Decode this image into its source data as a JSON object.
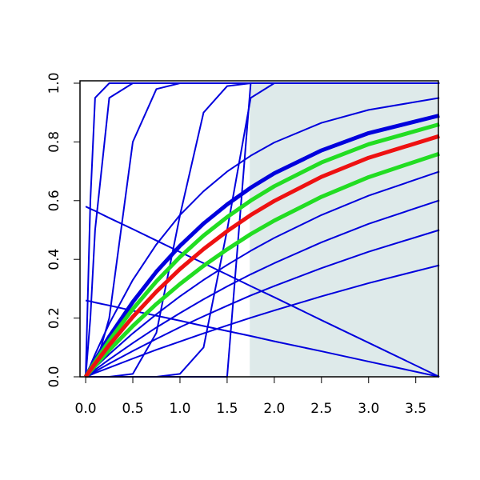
{
  "chart_data": {
    "type": "line",
    "x": [
      0,
      0.05,
      0.1,
      0.25,
      0.5,
      0.75,
      1,
      1.25,
      1.5,
      1.75,
      2,
      2.5,
      3,
      3.75
    ],
    "xlim": [
      -0.06,
      3.74
    ],
    "ylim": [
      0,
      1
    ],
    "xticks": [
      {
        "value": 0,
        "label": "0.0"
      },
      0.5,
      {
        "value": 1,
        "label": "1.0"
      },
      1.5,
      {
        "value": 2,
        "label": "2.0"
      },
      2.5,
      {
        "value": 3,
        "label": "3.0"
      },
      3.5
    ],
    "yticks": [
      {
        "value": 0,
        "label": "0.0"
      },
      0.2,
      0.4,
      0.6,
      0.8,
      {
        "value": 1,
        "label": "1.0"
      }
    ],
    "shaded_region": {
      "xlim": [
        1.74,
        3.74
      ],
      "color": "#deeaea"
    },
    "series": [
      {
        "color": "#0000dd",
        "width": 2,
        "values": [
          0,
          0.6,
          0.95,
          1,
          1,
          1,
          1,
          1,
          1,
          1,
          1,
          1,
          1,
          1
        ]
      },
      {
        "color": "#0000dd",
        "width": 2,
        "values": [
          0,
          0.2,
          0.5,
          0.95,
          1,
          1,
          1,
          1,
          1,
          1,
          1,
          1,
          1,
          1
        ]
      },
      {
        "color": "#0000dd",
        "width": 2,
        "values": [
          0,
          0.01,
          0.03,
          0.2,
          0.8,
          0.98,
          1,
          1,
          1,
          1,
          1,
          1,
          1,
          1
        ]
      },
      {
        "color": "#0000dd",
        "width": 2,
        "values": [
          0,
          0,
          0,
          0,
          0.01,
          0.15,
          0.55,
          0.9,
          0.99,
          1,
          1,
          1,
          1,
          1
        ]
      },
      {
        "color": "#0000dd",
        "width": 2,
        "values": [
          0,
          0,
          0,
          0,
          0,
          0,
          0.01,
          0.1,
          0.5,
          0.95,
          1,
          1,
          1,
          1
        ]
      },
      {
        "color": "#0000dd",
        "width": 2,
        "values": [
          0,
          0,
          0,
          0,
          0,
          0,
          0,
          0,
          0,
          1,
          1,
          1,
          1,
          1
        ]
      },
      {
        "color": "#0000dd",
        "width": 2,
        "values": [
          0.58,
          0.572,
          0.565,
          0.541,
          0.503,
          0.464,
          0.425,
          0.387,
          0.348,
          0.309,
          0.271,
          0.193,
          0.116,
          0
        ]
      },
      {
        "color": "#0000dd",
        "width": 2,
        "values": [
          0.26,
          0.257,
          0.253,
          0.243,
          0.225,
          0.208,
          0.191,
          0.173,
          0.156,
          0.139,
          0.121,
          0.087,
          0.052,
          0
        ]
      },
      {
        "color": "#0000dd",
        "width": 2,
        "values": [
          0,
          0.039,
          0.077,
          0.181,
          0.33,
          0.451,
          0.551,
          0.632,
          0.699,
          0.753,
          0.798,
          0.865,
          0.909,
          0.95
        ]
      },
      {
        "color": "#0000dd",
        "width": 5,
        "values": [
          0,
          0.029,
          0.057,
          0.137,
          0.255,
          0.358,
          0.446,
          0.522,
          0.587,
          0.644,
          0.693,
          0.771,
          0.83,
          0.89
        ]
      },
      {
        "color": "#0000dd",
        "width": 2,
        "values": [
          0,
          0.016,
          0.032,
          0.077,
          0.148,
          0.213,
          0.274,
          0.33,
          0.381,
          0.429,
          0.473,
          0.551,
          0.617,
          0.699
        ]
      },
      {
        "color": "#0000dd",
        "width": 2,
        "values": [
          0,
          0.012,
          0.024,
          0.059,
          0.115,
          0.168,
          0.217,
          0.264,
          0.308,
          0.349,
          0.387,
          0.458,
          0.521,
          0.601
        ]
      },
      {
        "color": "#0000dd",
        "width": 2,
        "values": [
          0,
          0.009,
          0.018,
          0.045,
          0.088,
          0.129,
          0.169,
          0.206,
          0.242,
          0.277,
          0.309,
          0.37,
          0.426,
          0.5
        ]
      },
      {
        "color": "#0000dd",
        "width": 2,
        "values": [
          0,
          0.006,
          0.013,
          0.031,
          0.062,
          0.092,
          0.12,
          0.148,
          0.175,
          0.201,
          0.226,
          0.274,
          0.319,
          0.38
        ]
      },
      {
        "color": "#22dd22",
        "width": 5,
        "values": [
          0,
          0.026,
          0.051,
          0.123,
          0.231,
          0.325,
          0.408,
          0.481,
          0.544,
          0.6,
          0.649,
          0.73,
          0.792,
          0.86
        ]
      },
      {
        "color": "#22dd22",
        "width": 5,
        "values": [
          0,
          0.019,
          0.037,
          0.091,
          0.173,
          0.248,
          0.316,
          0.378,
          0.434,
          0.486,
          0.532,
          0.613,
          0.68,
          0.76
        ]
      },
      {
        "color": "#ee1111",
        "width": 5,
        "values": [
          0,
          0.023,
          0.045,
          0.108,
          0.204,
          0.29,
          0.367,
          0.435,
          0.496,
          0.551,
          0.599,
          0.681,
          0.746,
          0.82
        ]
      }
    ]
  }
}
